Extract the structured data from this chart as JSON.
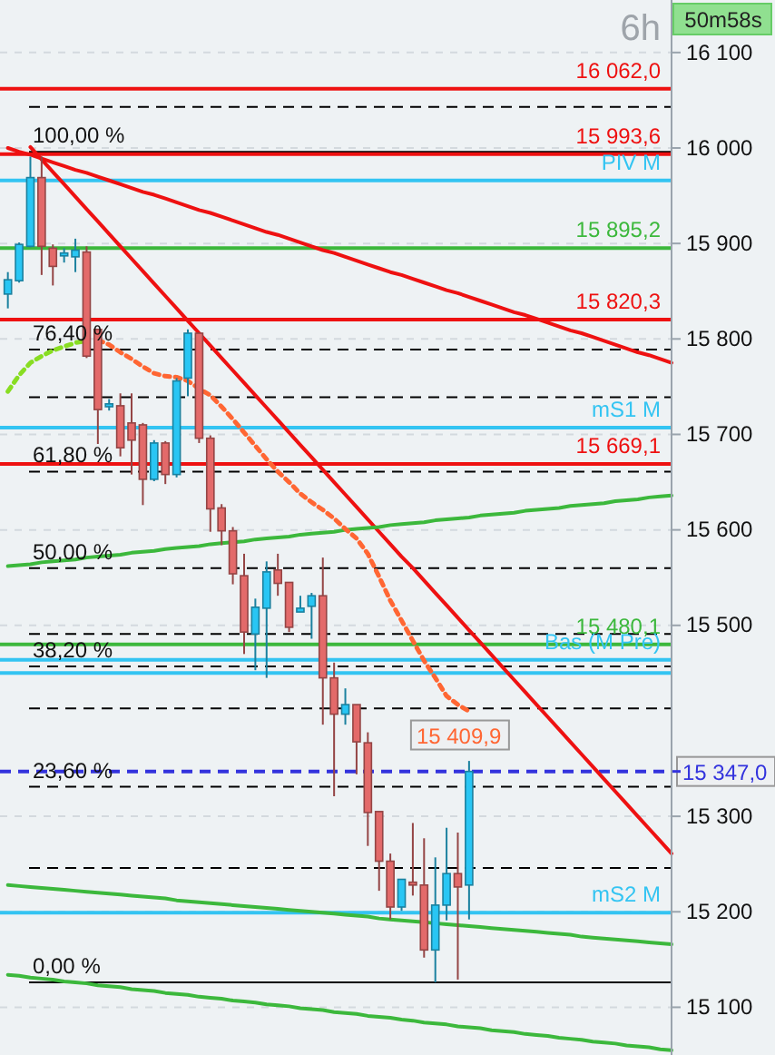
{
  "chart_data": {
    "type": "candlestick",
    "title": "6h",
    "categories": [
      null,
      null,
      null,
      null,
      null,
      null,
      null,
      null,
      null,
      null,
      null,
      null,
      null,
      null,
      null,
      null,
      null,
      null,
      null,
      null,
      null,
      null,
      null,
      null,
      null,
      null,
      null,
      null,
      null,
      null,
      null,
      null,
      null,
      null,
      null,
      null,
      null,
      null,
      null,
      null,
      null,
      null,
      null,
      null,
      null,
      null,
      null,
      null,
      null,
      null,
      null,
      null,
      null,
      null,
      null,
      null,
      null,
      null,
      null,
      null
    ],
    "ohlc": [
      [
        15847,
        15870,
        15832,
        15862
      ],
      [
        15861,
        15901,
        15859,
        15899
      ],
      [
        15897,
        15991,
        15896,
        15969
      ],
      [
        15969,
        15991,
        15867,
        15897
      ],
      [
        15895,
        15899,
        15856,
        15876
      ],
      [
        15887,
        15895,
        15880,
        15890
      ],
      [
        15886,
        15905,
        15870,
        15893
      ],
      [
        15891,
        15897,
        15780,
        15782
      ],
      [
        15810,
        15810,
        15690,
        15726
      ],
      [
        15729,
        15737,
        15725,
        15732
      ],
      [
        15730,
        15743,
        15677,
        15686
      ],
      [
        15712,
        15743,
        15658,
        15694
      ],
      [
        15710,
        15712,
        15626,
        15653
      ],
      [
        15653,
        15694,
        15651,
        15691
      ],
      [
        15691,
        15693,
        15648,
        15658
      ],
      [
        15658,
        15759,
        15655,
        15756
      ],
      [
        15759,
        15810,
        15740,
        15806
      ],
      [
        15806,
        15806,
        15691,
        15696
      ],
      [
        15696,
        15699,
        15598,
        15622
      ],
      [
        15623,
        15627,
        15584,
        15599
      ],
      [
        15599,
        15603,
        15543,
        15554
      ],
      [
        15552,
        15575,
        15470,
        15493
      ],
      [
        15491,
        15528,
        15453,
        15519
      ],
      [
        15518,
        15567,
        15445,
        15556
      ],
      [
        15558,
        15575,
        15531,
        15544
      ],
      [
        15545,
        15545,
        15493,
        15498
      ],
      [
        15514,
        15531,
        15514,
        15518
      ],
      [
        15520,
        15534,
        15486,
        15531
      ],
      [
        15531,
        15571,
        15396,
        15445
      ],
      [
        15445,
        15461,
        15321,
        15407
      ],
      [
        15407,
        15434,
        15396,
        15417
      ],
      [
        15417,
        15417,
        15344,
        15378
      ],
      [
        15377,
        15388,
        15269,
        15304
      ],
      [
        15305,
        15305,
        15222,
        15253
      ],
      [
        15253,
        15261,
        15192,
        15205
      ],
      [
        15205,
        15234,
        15201,
        15234
      ],
      [
        15231,
        15293,
        15217,
        15228
      ],
      [
        15228,
        15277,
        15152,
        15160
      ],
      [
        15160,
        15257,
        15126,
        15207
      ],
      [
        15207,
        15288,
        15191,
        15240
      ],
      [
        15240,
        15283,
        15129,
        15226
      ],
      [
        15228,
        15358,
        15192,
        15347
      ],
      null,
      null,
      null,
      null,
      null,
      null,
      null,
      null,
      null,
      null,
      null,
      null,
      null,
      null,
      null,
      null,
      null,
      null
    ],
    "colors": [
      "#29c6f4",
      "#29c6f4",
      "#29c6f4",
      "#e36a6a",
      "#e36a6a",
      "#29c6f4",
      "#29c6f4",
      "#e36a6a",
      "#e36a6a",
      "#29c6f4",
      "#e36a6a",
      "#e36a6a",
      "#e36a6a",
      "#29c6f4",
      "#e36a6a",
      "#29c6f4",
      "#29c6f4",
      "#e36a6a",
      "#e36a6a",
      "#e36a6a",
      "#e36a6a",
      "#e36a6a",
      "#29c6f4",
      "#29c6f4",
      "#e36a6a",
      "#e36a6a",
      "#29c6f4",
      "#29c6f4",
      "#e36a6a",
      "#e36a6a",
      "#29c6f4",
      "#e36a6a",
      "#e36a6a",
      "#e36a6a",
      "#e36a6a",
      "#29c6f4",
      "#e36a6a",
      "#e36a6a",
      "#29c6f4",
      "#29c6f4",
      "#e36a6a",
      "#29c6f4",
      null,
      null,
      null,
      null,
      null,
      null,
      null,
      null,
      null,
      null,
      null,
      null,
      null,
      null,
      null,
      null,
      null,
      null
    ],
    "series": [
      {
        "type": "line",
        "color": "#ee1111",
        "values": [
          16000,
          15996,
          15993,
          15989,
          15985,
          15981,
          15977,
          15974,
          15970,
          15966,
          15962,
          15958,
          15954,
          15951,
          15947,
          15943,
          15939,
          15935,
          15932,
          15928,
          15924,
          15920,
          15916,
          15912,
          15909,
          15905,
          15901,
          15897,
          15893,
          15890,
          15886,
          15882,
          15878,
          15874,
          15870,
          15867,
          15863,
          15859,
          15855,
          15851,
          15848,
          15844,
          15840,
          15836,
          15832,
          15828,
          15825,
          15821,
          15817,
          15813,
          15809,
          15806,
          15802,
          15798,
          15794,
          15790,
          15786,
          15783,
          15779,
          15775
        ]
      },
      {
        "type": "line",
        "color": "#ee1111",
        "values": [
          null,
          null,
          16001,
          15988,
          15975,
          15962,
          15949,
          15936,
          15923,
          15910,
          15897,
          15884,
          15871,
          15858,
          15845,
          15832,
          15819,
          15806,
          15793,
          15780,
          15767,
          15754,
          15741,
          15728,
          15715,
          15702,
          15689,
          15676,
          15663,
          15650,
          15637,
          15624,
          15611,
          15598,
          15585,
          15572,
          15560,
          15547,
          15534,
          15521,
          15508,
          15495,
          15482,
          15469,
          15456,
          15443,
          15430,
          15417,
          15404,
          15391,
          15378,
          15365,
          15352,
          15339,
          15326,
          15313,
          15300,
          15287,
          15274,
          15261
        ]
      },
      {
        "type": "line",
        "color": "#3cb83c",
        "values": [
          15562,
          15563,
          15564,
          15566,
          15567,
          15568,
          15569,
          15571,
          15572,
          15573,
          15574,
          15576,
          15577,
          15578,
          15580,
          15581,
          15582,
          15583,
          15585,
          15586,
          15587,
          15588,
          15590,
          15591,
          15592,
          15593,
          15595,
          15596,
          15597,
          15598,
          15600,
          15601,
          15602,
          15603,
          15605,
          15606,
          15607,
          15608,
          15610,
          15611,
          15612,
          15613,
          15615,
          15616,
          15617,
          15618,
          15620,
          15621,
          15622,
          15623,
          15625,
          15626,
          15627,
          15628,
          15630,
          15631,
          15632,
          15634,
          15635,
          15636
        ]
      },
      {
        "type": "line",
        "color": "#3cb83c",
        "values": [
          15228,
          15227,
          15226,
          15225,
          15224,
          15223,
          15222,
          15221,
          15220,
          15219,
          15218,
          15217,
          15216,
          15215,
          15214,
          15212,
          15211,
          15210,
          15209,
          15208,
          15207,
          15206,
          15205,
          15204,
          15203,
          15202,
          15201,
          15200,
          15199,
          15198,
          15197,
          15196,
          15195,
          15193,
          15192,
          15191,
          15190,
          15189,
          15188,
          15187,
          15186,
          15185,
          15184,
          15183,
          15182,
          15181,
          15180,
          15179,
          15178,
          15177,
          15176,
          15174,
          15173,
          15172,
          15171,
          15170,
          15169,
          15168,
          15167,
          15166
        ]
      },
      {
        "type": "line",
        "color": "#3cb83c",
        "values": [
          15134,
          15133,
          15131,
          15130,
          15129,
          15127,
          15126,
          15125,
          15123,
          15122,
          15121,
          15119,
          15118,
          15117,
          15115,
          15114,
          15113,
          15111,
          15110,
          15109,
          15107,
          15106,
          15105,
          15103,
          15102,
          15101,
          15099,
          15098,
          15097,
          15095,
          15094,
          15093,
          15091,
          15090,
          15089,
          15087,
          15086,
          15084,
          15083,
          15082,
          15080,
          15079,
          15078,
          15076,
          15075,
          15074,
          15072,
          15071,
          15070,
          15068,
          15067,
          15066,
          15064,
          15063,
          15062,
          15060,
          15059,
          15058,
          15056,
          15055
        ]
      },
      {
        "type": "line",
        "color": "#88dd22",
        "line_style": "dotted",
        "values": [
          15745,
          15762,
          15775,
          15782,
          15788,
          15792,
          15796,
          15798,
          null,
          null,
          null,
          null,
          null,
          null,
          null,
          null,
          null,
          null,
          null,
          null,
          null,
          null,
          null,
          null,
          null,
          null,
          null,
          null,
          null,
          null,
          null,
          null,
          null,
          null,
          null,
          null,
          null,
          null,
          null,
          null,
          null,
          null,
          null,
          null,
          null,
          null,
          null,
          null,
          null,
          null,
          null,
          null,
          null,
          null,
          null,
          null,
          null,
          null,
          null,
          null
        ]
      },
      {
        "type": "line",
        "color": "#ff6633",
        "line_style": "dotted",
        "values": [
          null,
          null,
          null,
          null,
          null,
          null,
          null,
          null,
          15799,
          15794,
          15786,
          15779,
          15771,
          15764,
          15761,
          15760,
          15756,
          15748,
          15741,
          15729,
          15716,
          15702,
          15688,
          15674,
          15661,
          15650,
          15638,
          15629,
          15621,
          15612,
          15601,
          15591,
          15575,
          15551,
          15526,
          15505,
          15484,
          15463,
          15445,
          15426,
          15417,
          15409.9,
          null,
          null,
          null,
          null,
          null,
          null,
          null,
          null,
          null,
          null,
          null,
          null,
          null,
          null,
          null,
          null,
          null,
          null
        ],
        "value_labels": [
          null,
          null,
          null,
          null,
          null,
          null,
          null,
          null,
          null,
          null,
          null,
          null,
          null,
          null,
          null,
          null,
          null,
          null,
          null,
          null,
          null,
          null,
          null,
          null,
          null,
          null,
          null,
          null,
          null,
          null,
          null,
          null,
          null,
          null,
          null,
          null,
          null,
          null,
          null,
          null,
          null,
          "15 409,9",
          null,
          null,
          null,
          null,
          null,
          null,
          null,
          null,
          null,
          null,
          null,
          null,
          null,
          null,
          null,
          null,
          null,
          null
        ]
      }
    ],
    "ylim": [
      15050,
      16155
    ],
    "yticks": [
      {
        "value": 15100,
        "label": "15 100"
      },
      {
        "value": 15200,
        "label": "15 200"
      },
      {
        "value": 15300,
        "label": "15 300"
      },
      {
        "value": 15500,
        "label": "15 500"
      },
      {
        "value": 15600,
        "label": "15 600"
      },
      {
        "value": 15700,
        "label": "15 700"
      },
      {
        "value": 15800,
        "label": "15 800"
      },
      {
        "value": 15900,
        "label": "15 900"
      },
      {
        "value": 16000,
        "label": "16 000"
      },
      {
        "value": 16100,
        "label": "16 100"
      }
    ],
    "tick_labels": "y",
    "grid": "y",
    "ref_lines": [
      {
        "axis": "y",
        "value": 16062,
        "label": "16 062,0",
        "color": "#ee1111",
        "line_style": "solid"
      },
      {
        "axis": "y",
        "value": 16043,
        "color": "#000000",
        "line_style": "dashed"
      },
      {
        "axis": "y",
        "value": 15996,
        "color": "#000000",
        "line_style": "solid"
      },
      {
        "axis": "y",
        "value": 15993.6,
        "label": "15 993,6",
        "color": "#ee1111",
        "line_style": "solid"
      },
      {
        "axis": "y",
        "value": 15966,
        "label": "PIV M",
        "color": "#33c4f2",
        "line_style": "solid"
      },
      {
        "axis": "y",
        "value": 15895.2,
        "label": "15 895,2",
        "color": "#3cb83c",
        "line_style": "solid"
      },
      {
        "axis": "y",
        "value": 15820.3,
        "label": "15 820,3",
        "color": "#ee1111",
        "line_style": "solid"
      },
      {
        "axis": "y",
        "value": 15789,
        "color": "#000000",
        "line_style": "dashed"
      },
      {
        "axis": "y",
        "value": 15739,
        "color": "#000000",
        "line_style": "dashed"
      },
      {
        "axis": "y",
        "value": 15707,
        "label": "mS1 M",
        "color": "#33c4f2",
        "line_style": "solid"
      },
      {
        "axis": "y",
        "value": 15669.1,
        "label": "15 669,1",
        "color": "#ee1111",
        "line_style": "solid"
      },
      {
        "axis": "y",
        "value": 15661,
        "color": "#000000",
        "line_style": "dashed"
      },
      {
        "axis": "y",
        "value": 15560,
        "color": "#000000",
        "line_style": "dashed"
      },
      {
        "axis": "y",
        "value": 15491,
        "color": "#000000",
        "line_style": "dashed"
      },
      {
        "axis": "y",
        "value": 15480.1,
        "label": "15 480,1",
        "color": "#3cb83c",
        "line_style": "solid"
      },
      {
        "axis": "y",
        "value": 15464,
        "label": "Bas (M Pre)",
        "color": "#33c4f2",
        "line_style": "solid"
      },
      {
        "axis": "y",
        "value": 15457,
        "color": "#000000",
        "line_style": "dashed"
      },
      {
        "axis": "y",
        "value": 15450,
        "color": "#33c4f2",
        "line_style": "solid"
      },
      {
        "axis": "y",
        "value": 15413,
        "color": "#000000",
        "line_style": "dashed"
      },
      {
        "axis": "y",
        "value": 15347,
        "label": "15 347,0",
        "color": "#3333dd",
        "line_style": "dashed"
      },
      {
        "axis": "y",
        "value": 15331,
        "color": "#000000",
        "line_style": "dashed"
      },
      {
        "axis": "y",
        "value": 15246,
        "color": "#000000",
        "line_style": "dashed"
      },
      {
        "axis": "y",
        "value": 15199,
        "label": "mS2 M",
        "color": "#33c4f2",
        "line_style": "solid"
      },
      {
        "axis": "y",
        "value": 15126,
        "color": "#000000",
        "line_style": "solid"
      }
    ],
    "annotations": [
      "50m58s",
      {
        "text": "100,00 %",
        "y": 15996
      },
      {
        "text": "76,40 %",
        "y": 15789
      },
      {
        "text": "61,80 %",
        "y": 15661
      },
      {
        "text": "50,00 %",
        "y": 15560
      },
      {
        "text": "38,20 %",
        "y": 15457
      },
      {
        "text": "23,60 %",
        "y": 15331
      },
      {
        "text": "0,00 %",
        "y": 15126
      }
    ]
  }
}
